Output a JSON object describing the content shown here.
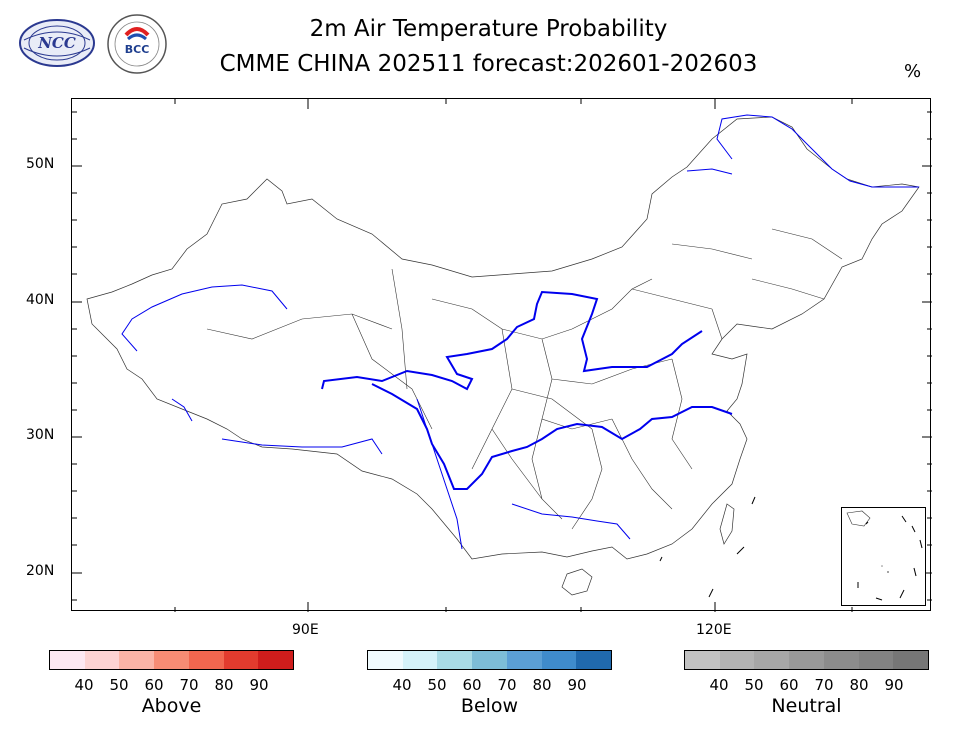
{
  "header": {
    "title": "2m Air Temperature Probability",
    "subtitle": "CMME CHINA 202511 forecast:202601-202603",
    "unit": "%"
  },
  "logos": {
    "ncc": "NCC",
    "bcc": "BCC"
  },
  "axes": {
    "y_labels": [
      "50N",
      "40N",
      "30N",
      "20N"
    ],
    "x_labels": [
      "90E",
      "120E"
    ]
  },
  "legend": {
    "above": {
      "label": "Above",
      "ticks": [
        "40",
        "50",
        "60",
        "70",
        "80",
        "90"
      ],
      "colors": [
        "#fde8f2",
        "#fdd3d3",
        "#fbb4a6",
        "#f78c74",
        "#f1664f",
        "#e23b2e",
        "#cf1d1c"
      ]
    },
    "below": {
      "label": "Below",
      "ticks": [
        "40",
        "50",
        "60",
        "70",
        "80",
        "90"
      ],
      "colors": [
        "#f0fbfe",
        "#d4f2f9",
        "#a8dbe6",
        "#7dbdd7",
        "#5b9fd5",
        "#3f8bcb",
        "#2069ad"
      ]
    },
    "neutral": {
      "label": "Neutral",
      "ticks": [
        "40",
        "50",
        "60",
        "70",
        "80",
        "90"
      ],
      "colors": [
        "#c2c2c2",
        "#b2b2b2",
        "#a6a6a6",
        "#999999",
        "#8c8c8c",
        "#828282",
        "#767676"
      ]
    }
  }
}
